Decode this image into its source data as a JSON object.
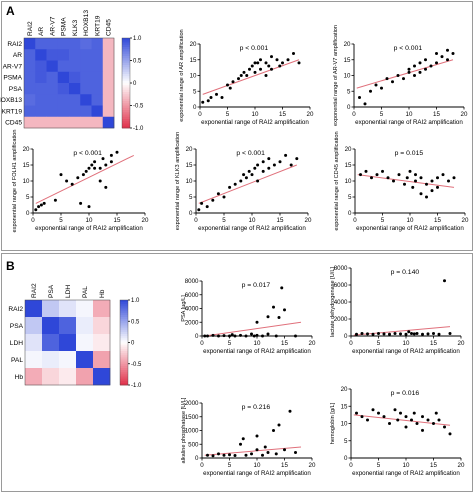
{
  "panel_labels": {
    "a": "A",
    "b": "B"
  },
  "colors": {
    "high": "#2f47d8",
    "mid": "#ffffff",
    "low": "#e0304a",
    "fit": "#e0707b"
  },
  "chart_data": [
    {
      "id": "hmA",
      "type": "heatmap",
      "rows": [
        "RAI2",
        "AR",
        "AR-V7",
        "PSMA",
        "PSA",
        "HOXB13",
        "KRT19",
        "CD45"
      ],
      "cols": [
        "RAI2",
        "AR",
        "AR-V7",
        "PSMA",
        "KLK3",
        "HOXB13",
        "KRT19",
        "CD45"
      ],
      "values": [
        [
          1.0,
          0.85,
          0.85,
          0.85,
          0.85,
          0.8,
          0.85,
          -0.35
        ],
        [
          0.85,
          1.0,
          0.9,
          0.9,
          0.85,
          0.85,
          0.85,
          -0.35
        ],
        [
          0.85,
          0.9,
          1.0,
          0.85,
          0.85,
          0.85,
          0.85,
          -0.35
        ],
        [
          0.85,
          0.9,
          0.85,
          1.0,
          0.9,
          0.85,
          0.85,
          -0.35
        ],
        [
          0.85,
          0.85,
          0.85,
          0.9,
          1.0,
          0.85,
          0.85,
          -0.35
        ],
        [
          0.8,
          0.85,
          0.85,
          0.85,
          0.85,
          1.0,
          0.85,
          -0.35
        ],
        [
          0.85,
          0.85,
          0.85,
          0.85,
          0.85,
          0.85,
          1.0,
          -0.35
        ],
        [
          -0.35,
          -0.35,
          -0.35,
          -0.35,
          -0.35,
          -0.35,
          -0.35,
          1.0
        ]
      ],
      "colorbar": {
        "ticks": [
          "1.0",
          "0.5",
          "0",
          "-0.5",
          "-1.0"
        ],
        "range": [
          -1,
          1
        ]
      }
    },
    {
      "id": "sAR",
      "type": "scatter",
      "pvalue": "p < 0.001",
      "xlabel": "exponential range of RAI2 amplification",
      "ylabel": "exponential range of AR amplification",
      "xlim": [
        0,
        20
      ],
      "ylim": [
        0,
        20
      ],
      "xticks": [
        0,
        5,
        10,
        15,
        20
      ],
      "yticks": [
        0,
        5,
        10,
        15,
        20
      ],
      "x": [
        0.5,
        1.5,
        2,
        3,
        4,
        5,
        5.5,
        6,
        7,
        7.5,
        8,
        8.5,
        9,
        9.5,
        10,
        10,
        10.5,
        11,
        11,
        12,
        12,
        12.5,
        13,
        13,
        14,
        14.5,
        15,
        16,
        17,
        18
      ],
      "y": [
        1.5,
        2,
        3,
        4,
        3,
        7,
        6,
        8,
        9,
        10,
        11,
        10,
        12,
        13,
        11,
        14,
        14,
        12,
        15,
        10,
        14,
        13,
        16,
        12,
        15,
        13,
        14,
        15,
        17,
        14
      ],
      "fit": [
        [
          0.5,
          4
        ],
        [
          18,
          15
        ]
      ]
    },
    {
      "id": "sARV7",
      "type": "scatter",
      "pvalue": "p < 0.001",
      "xlabel": "exponential range of RAI2 amplification",
      "ylabel": "exponential range of AR-V7 amplification",
      "xlim": [
        0,
        20
      ],
      "ylim": [
        0,
        20
      ],
      "xticks": [
        0,
        5,
        10,
        15,
        20
      ],
      "yticks": [
        0,
        5,
        10,
        15,
        20
      ],
      "x": [
        1,
        2,
        3,
        4,
        5,
        6,
        7,
        8,
        9,
        10,
        10,
        11,
        11,
        12,
        12,
        13,
        13,
        14,
        15,
        15,
        16,
        17,
        17,
        18
      ],
      "y": [
        3,
        1,
        5,
        7,
        6,
        9,
        8,
        10,
        9,
        11,
        12,
        10,
        13,
        11,
        14,
        12,
        15,
        13,
        17,
        14,
        16,
        18,
        15,
        17
      ],
      "fit": [
        [
          0.5,
          6
        ],
        [
          18,
          15
        ]
      ]
    },
    {
      "id": "sFOLH1",
      "type": "scatter",
      "pvalue": "p < 0.001",
      "xlabel": "exponential range of RAI2 amplification",
      "ylabel": "exponential range of FOLH1 amplification",
      "xlim": [
        0,
        20
      ],
      "ylim": [
        0,
        20
      ],
      "xticks": [
        0,
        5,
        10,
        15,
        20
      ],
      "yticks": [
        0,
        5,
        10,
        15,
        20
      ],
      "x": [
        0.5,
        1,
        1.5,
        2,
        4,
        5,
        6,
        7,
        8,
        8.5,
        9,
        9.5,
        10,
        10,
        10.5,
        11,
        11,
        12,
        12,
        12.5,
        13,
        13,
        14,
        14,
        15
      ],
      "y": [
        1,
        2,
        2.5,
        3,
        4,
        12,
        10,
        9,
        11,
        3,
        12,
        13,
        14,
        2,
        15,
        14,
        16,
        10,
        14,
        17,
        15,
        8,
        18,
        16,
        19
      ],
      "fit": [
        [
          0.5,
          3
        ],
        [
          18,
          18
        ]
      ]
    },
    {
      "id": "sKLK3",
      "type": "scatter",
      "pvalue": "p < 0.001",
      "xlabel": "exponential range of RAI2 amplification",
      "ylabel": "exponential range of KLK3 amplification",
      "xlim": [
        0,
        20
      ],
      "ylim": [
        0,
        20
      ],
      "xticks": [
        0,
        5,
        10,
        15,
        20
      ],
      "yticks": [
        0,
        5,
        10,
        15,
        20
      ],
      "x": [
        0.5,
        1,
        2,
        3,
        4,
        5,
        6,
        7,
        8,
        8.5,
        9,
        9.5,
        10,
        10.5,
        11,
        11,
        12,
        12,
        13,
        13,
        14,
        15,
        16,
        17,
        18
      ],
      "y": [
        1,
        3,
        2,
        4,
        6,
        5,
        8,
        9,
        10,
        12,
        11,
        13,
        12,
        14,
        10,
        15,
        13,
        16,
        14,
        17,
        15,
        16,
        18,
        15,
        17
      ],
      "fit": [
        [
          0.5,
          3
        ],
        [
          18,
          15
        ]
      ]
    },
    {
      "id": "sCD45",
      "type": "scatter",
      "pvalue": "p = 0.015",
      "xlabel": "exponential range of RAI2 amplification",
      "ylabel": "exponential range of CD45 amplification",
      "xlim": [
        0,
        20
      ],
      "ylim": [
        0,
        20
      ],
      "xticks": [
        0,
        5,
        10,
        15,
        20
      ],
      "yticks": [
        0,
        5,
        10,
        15,
        20
      ],
      "x": [
        1,
        2,
        3,
        4,
        5,
        6,
        7,
        8,
        9,
        9.5,
        10,
        10.5,
        11,
        11,
        12,
        12,
        13,
        13,
        14,
        14,
        15,
        15,
        16,
        17,
        18
      ],
      "y": [
        12,
        13,
        11,
        12,
        13,
        11,
        10,
        12,
        9,
        11,
        13,
        8,
        10,
        12,
        6,
        11,
        5,
        9,
        10,
        7,
        11,
        8,
        12,
        10,
        11
      ],
      "fit": [
        [
          0.5,
          12
        ],
        [
          18,
          8
        ]
      ]
    },
    {
      "id": "hmB",
      "type": "heatmap",
      "rows": [
        "RAI2",
        "PSA",
        "LDH",
        "PAL",
        "Hb"
      ],
      "cols": [
        "RAI2",
        "PSA",
        "LDH",
        "PAL",
        "Hb"
      ],
      "values": [
        [
          1.0,
          0.3,
          0.15,
          0.05,
          -0.4
        ],
        [
          0.3,
          1.0,
          0.85,
          0.1,
          -0.2
        ],
        [
          0.15,
          0.85,
          1.0,
          0.05,
          -0.1
        ],
        [
          0.05,
          0.1,
          0.05,
          1.0,
          -0.45
        ],
        [
          -0.4,
          -0.2,
          -0.1,
          -0.45,
          1.0
        ]
      ],
      "colorbar": {
        "ticks": [
          "1.0",
          "0.5",
          "0",
          "-0.5",
          "-1.0"
        ],
        "range": [
          -1,
          1
        ]
      }
    },
    {
      "id": "sPSA",
      "type": "scatter",
      "pvalue": "p = 0.017",
      "xlabel": "exponential range of RAI2 amplification",
      "ylabel": "PSA [µg/L]",
      "xlim": [
        0,
        20
      ],
      "ylim": [
        0,
        8000
      ],
      "xticks": [
        0,
        5,
        10,
        15,
        20
      ],
      "yticks": [
        0,
        2000,
        4000,
        6000,
        8000
      ],
      "x": [
        0.5,
        1,
        2,
        3,
        4,
        5,
        5.5,
        6,
        7,
        8,
        9,
        9.5,
        10,
        10,
        11,
        12,
        12,
        13,
        13.5,
        14,
        14.5,
        15,
        17
      ],
      "y": [
        0,
        0,
        100,
        0,
        50,
        0,
        200,
        0,
        100,
        0,
        300,
        0,
        2000,
        100,
        0,
        300,
        2800,
        4200,
        0,
        2700,
        7000,
        3800,
        0
      ],
      "fit": [
        [
          0.5,
          0
        ],
        [
          18,
          2000
        ]
      ]
    },
    {
      "id": "sLDH",
      "type": "scatter",
      "pvalue": "p = 0.140",
      "xlabel": "exponential range of RAI2 amplification",
      "ylabel": "lactate dehydrogenase [U/L]",
      "xlim": [
        0,
        20
      ],
      "ylim": [
        0,
        8000
      ],
      "xticks": [
        0,
        5,
        10,
        15,
        20
      ],
      "yticks": [
        0,
        2000,
        4000,
        6000,
        8000
      ],
      "x": [
        1,
        2,
        3,
        4,
        5,
        6,
        7,
        8,
        9,
        10,
        10.5,
        11,
        11.5,
        12,
        13,
        14,
        15,
        16,
        17,
        18
      ],
      "y": [
        200,
        300,
        250,
        200,
        300,
        250,
        200,
        300,
        250,
        200,
        500,
        300,
        250,
        300,
        200,
        250,
        300,
        200,
        6500,
        300
      ],
      "fit": [
        [
          0.5,
          100
        ],
        [
          18,
          1100
        ]
      ]
    },
    {
      "id": "sALP",
      "type": "scatter",
      "pvalue": "p = 0.216",
      "xlabel": "exponential range of RAI2 amplification",
      "ylabel": "alkaline phosphatase [U/L]",
      "xlim": [
        0,
        20
      ],
      "ylim": [
        0,
        2000
      ],
      "xticks": [
        0,
        5,
        10,
        15,
        20
      ],
      "yticks": [
        0,
        500,
        1000,
        1500,
        2000
      ],
      "x": [
        1,
        2,
        3,
        4,
        5,
        6,
        7,
        7.5,
        8,
        9,
        10,
        10,
        11,
        11.5,
        12,
        13,
        13.5,
        14,
        15,
        16,
        17
      ],
      "y": [
        100,
        80,
        150,
        100,
        120,
        90,
        500,
        700,
        100,
        150,
        300,
        800,
        100,
        400,
        200,
        1000,
        150,
        1200,
        300,
        1700,
        200
      ],
      "fit": [
        [
          0.5,
          100
        ],
        [
          18,
          400
        ]
      ]
    },
    {
      "id": "sHb",
      "type": "scatter",
      "pvalue": "p = 0.016",
      "xlabel": "exponential range of RAI2 amplification",
      "ylabel": "hemoglobin [g/L]",
      "xlim": [
        0,
        20
      ],
      "ylim": [
        0,
        20
      ],
      "xticks": [
        0,
        5,
        10,
        15,
        20
      ],
      "yticks": [
        0,
        5,
        10,
        15,
        20
      ],
      "x": [
        1,
        2,
        3,
        4,
        5,
        6,
        7,
        8,
        8.5,
        9,
        10,
        10,
        11,
        11.5,
        12,
        13,
        13,
        14,
        15,
        15.5,
        16,
        17,
        18
      ],
      "y": [
        13,
        12,
        11,
        14,
        13,
        12,
        10,
        14,
        11,
        13,
        12,
        9,
        11,
        13,
        10,
        12,
        8,
        11,
        10,
        13,
        11,
        9,
        7
      ],
      "fit": [
        [
          0.5,
          12.5
        ],
        [
          18,
          9.5
        ]
      ]
    }
  ]
}
